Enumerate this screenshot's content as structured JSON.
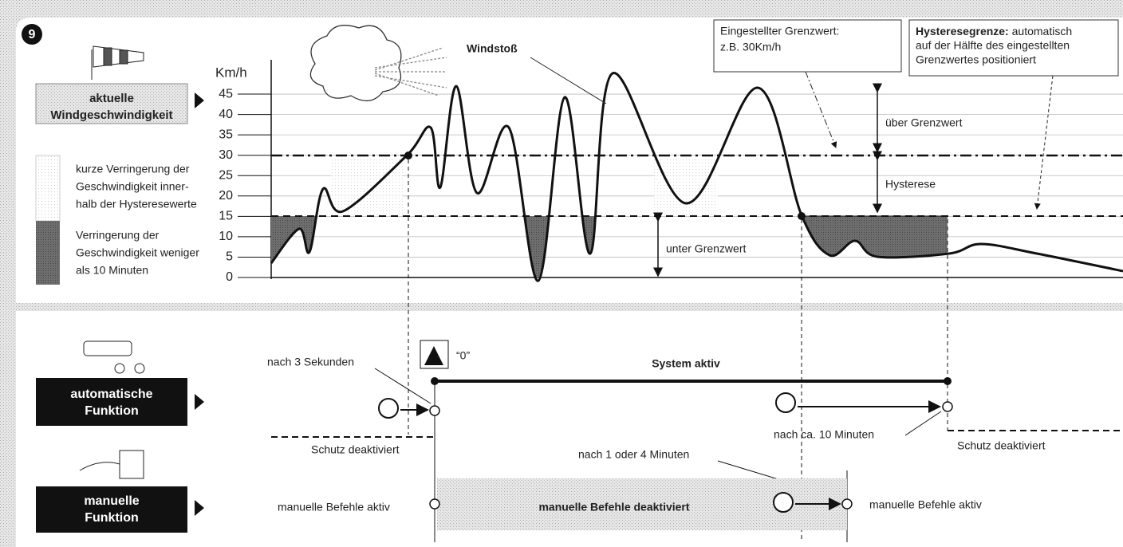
{
  "badge": "9",
  "wind_label": [
    "aktuelle",
    "Windgeschwindigkeit"
  ],
  "legend": [
    {
      "lines": [
        "kurze Verringerung der",
        "Geschwindigkeit inner-",
        "halb der Hysteresewerte"
      ]
    },
    {
      "lines": [
        "Verringerung der",
        "Geschwindigkeit weniger",
        "als 10 Minuten"
      ]
    }
  ],
  "axis": {
    "unit": "Km/h",
    "ticks": [
      0,
      5,
      10,
      15,
      20,
      25,
      30,
      35,
      40,
      45
    ]
  },
  "annotations": {
    "gust": "Windstoß",
    "threshold": [
      "Eingestellter Grenzwert:",
      "z.B. 30Km/h"
    ],
    "hysteresis_limit": {
      "bold": "Hysteresegrenze:",
      "lines": [
        " automatisch",
        "auf der Hälfte des eingestellten",
        "Grenzwertes positioniert"
      ]
    },
    "above": "über Grenzwert",
    "hysteresis": "Hysterese",
    "below": "unter Grenzwert"
  },
  "automatic": {
    "label": [
      "automatische",
      "Funktion"
    ],
    "after_3s": "nach 3 Sekunden",
    "zero": "“0”",
    "system": "System aktiv",
    "after_10min": "nach ca. 10 Minuten",
    "off_left": "Schutz deaktiviert",
    "off_right": "Schutz deaktiviert"
  },
  "manual": {
    "label": [
      "manuelle",
      "Funktion"
    ],
    "after": "nach 1 oder 4 Minuten",
    "active_left": "manuelle Befehle aktiv",
    "disabled": "manuelle Befehle deaktiviert",
    "active_right": "manuelle Befehle aktiv"
  }
}
